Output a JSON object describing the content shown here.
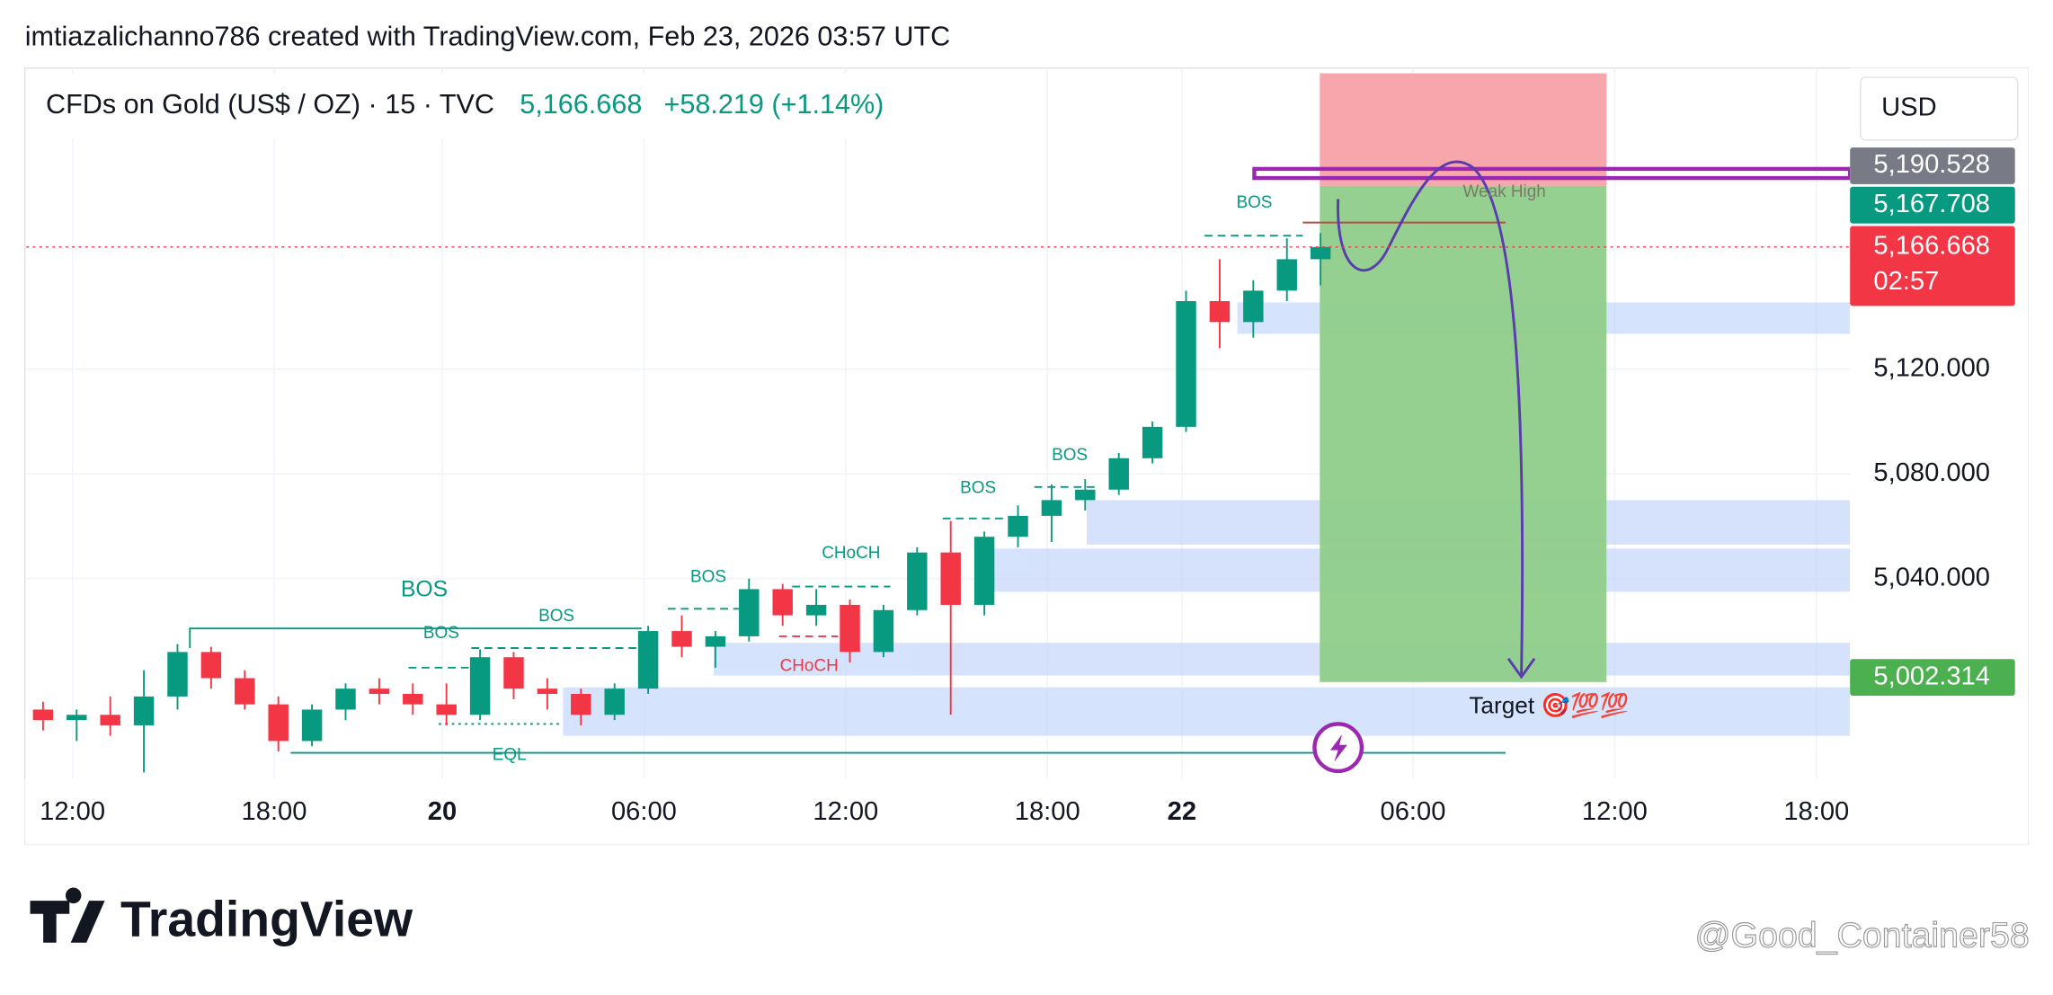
{
  "header": {
    "credit": "imtiazalichanno786 created with TradingView.com, Feb 23, 2026 03:57 UTC"
  },
  "symbol": {
    "name": "CFDs on Gold (US$ / OZ) · 15 · TVC",
    "last": "5,166.668",
    "change": "+58.219 (+1.14%)"
  },
  "currency": "USD",
  "chart_data": {
    "type": "candlestick",
    "x": [
      2,
      6,
      10,
      14,
      18,
      22,
      26,
      30,
      34,
      38,
      42,
      46,
      50,
      54,
      58,
      62,
      66,
      70,
      74,
      78,
      82,
      86,
      90,
      94,
      98,
      102,
      106,
      110,
      114,
      118,
      122,
      126,
      130,
      134,
      138,
      142,
      146,
      150,
      154
    ],
    "open": [
      4990,
      4986,
      4988,
      4984,
      4995,
      5012,
      5002,
      4992,
      4978,
      4990,
      4998,
      4996,
      4992,
      4988,
      5010,
      4998,
      4996,
      4988,
      4998,
      5020,
      5014,
      5018,
      5036,
      5026,
      5030,
      5012,
      5028,
      5050,
      5030,
      5056,
      5064,
      5070,
      5074,
      5086,
      5098,
      5146,
      5138,
      5150,
      5162
    ],
    "high": [
      4993,
      4990,
      4995,
      5005,
      5015,
      5014,
      5005,
      4995,
      4992,
      5000,
      5002,
      5000,
      5000,
      5013,
      5012,
      5002,
      4998,
      5000,
      5022,
      5026,
      5020,
      5040,
      5038,
      5036,
      5032,
      5030,
      5052,
      5062,
      5058,
      5068,
      5076,
      5078,
      5088,
      5100,
      5150,
      5162,
      5154,
      5170,
      5172
    ],
    "low": [
      4982,
      4978,
      4980,
      4966,
      4990,
      4998,
      4990,
      4974,
      4976,
      4986,
      4992,
      4988,
      4984,
      4986,
      4994,
      4990,
      4984,
      4986,
      4996,
      5010,
      5006,
      5016,
      5022,
      5022,
      5008,
      5010,
      5026,
      4988,
      5026,
      5052,
      5054,
      5066,
      5072,
      5084,
      5096,
      5128,
      5132,
      5146,
      5152
    ],
    "close": [
      4986,
      4988,
      4984,
      4995,
      5012,
      5002,
      4992,
      4978,
      4990,
      4998,
      4996,
      4992,
      4988,
      5010,
      4998,
      4996,
      4988,
      4998,
      5020,
      5014,
      5018,
      5036,
      5026,
      5030,
      5012,
      5028,
      5050,
      5030,
      5056,
      5064,
      5070,
      5074,
      5086,
      5098,
      5146,
      5138,
      5150,
      5162,
      5166.668
    ],
    "up_color": "#089981",
    "down_color": "#f23645",
    "xlim": [
      0,
      217
    ],
    "ylim": [
      4966,
      5235
    ],
    "xticks": [
      {
        "value": 5.5,
        "label": "12:00"
      },
      {
        "value": 29.5,
        "label": "18:00"
      },
      {
        "value": 49.5,
        "label": "20"
      },
      {
        "value": 73.5,
        "label": "06:00"
      },
      {
        "value": 97.5,
        "label": "12:00"
      },
      {
        "value": 121.5,
        "label": "18:00"
      },
      {
        "value": 137.5,
        "label": "22"
      },
      {
        "value": 165,
        "label": "06:00"
      },
      {
        "value": 189,
        "label": "12:00"
      },
      {
        "value": 213,
        "label": "18:00"
      }
    ],
    "yticks": [
      {
        "value": 5040,
        "label": "5,040.000"
      },
      {
        "value": 5080,
        "label": "5,080.000"
      },
      {
        "value": 5120,
        "label": "5,120.000"
      }
    ],
    "grid": true,
    "price_labels": [
      {
        "value": 5190.528,
        "label": "5,190.528",
        "color": "#787b86"
      },
      {
        "value": 5167.708,
        "label": "5,167.708",
        "color": "#089981"
      },
      {
        "value": 5166.668,
        "label": "5,166.668",
        "color": "#f23645",
        "countdown": "02:57"
      },
      {
        "value": 5002.314,
        "label": "5,002.314",
        "color": "#4caf50"
      }
    ],
    "annotations": [
      "BOS",
      "BOS",
      "BOS",
      "BOS",
      "CHoCH",
      "CHoCH",
      "BOS",
      "BOS",
      "BOS",
      "Weak High",
      "EQL",
      "Target 🎯💯💯"
    ]
  },
  "branding": {
    "logo": "TradingView",
    "watermark": "@Good_Container58"
  }
}
